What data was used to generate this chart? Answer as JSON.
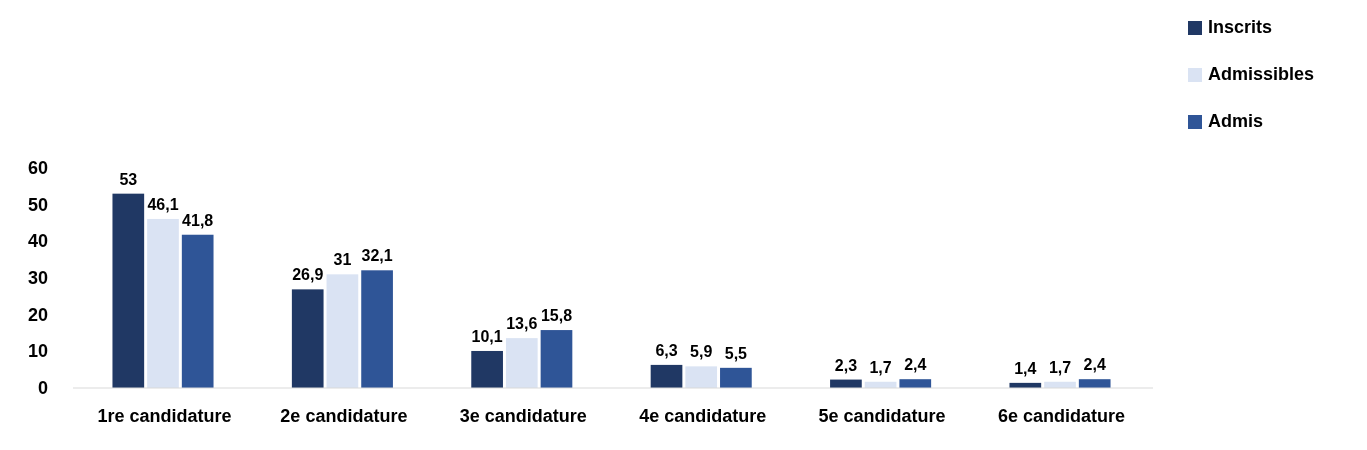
{
  "chart_data": {
    "type": "bar",
    "categories": [
      "1re candidature",
      "2e candidature",
      "3e candidature",
      "4e candidature",
      "5e candidature",
      "6e candidature"
    ],
    "series": [
      {
        "name": "Inscrits",
        "color": "#203864",
        "values": [
          53,
          26.9,
          10.1,
          6.3,
          2.3,
          1.4
        ],
        "value_labels": [
          "53",
          "26,9",
          "10,1",
          "6,3",
          "2,3",
          "1,4"
        ]
      },
      {
        "name": "Admissibles",
        "color": "#dae3f3",
        "values": [
          46.1,
          31,
          13.6,
          5.9,
          1.7,
          1.7
        ],
        "value_labels": [
          "46,1",
          "31",
          "13,6",
          "5,9",
          "1,7",
          "1,7"
        ]
      },
      {
        "name": "Admis",
        "color": "#2f5597",
        "values": [
          41.8,
          32.1,
          15.8,
          5.5,
          2.4,
          2.4
        ],
        "value_labels": [
          "41,8",
          "32,1",
          "15,8",
          "5,5",
          "2,4",
          "2,4"
        ]
      }
    ],
    "ylim": [
      0,
      60
    ],
    "yticks": [
      0,
      10,
      20,
      30,
      40,
      50,
      60
    ],
    "grid": false,
    "legend": "top right"
  }
}
